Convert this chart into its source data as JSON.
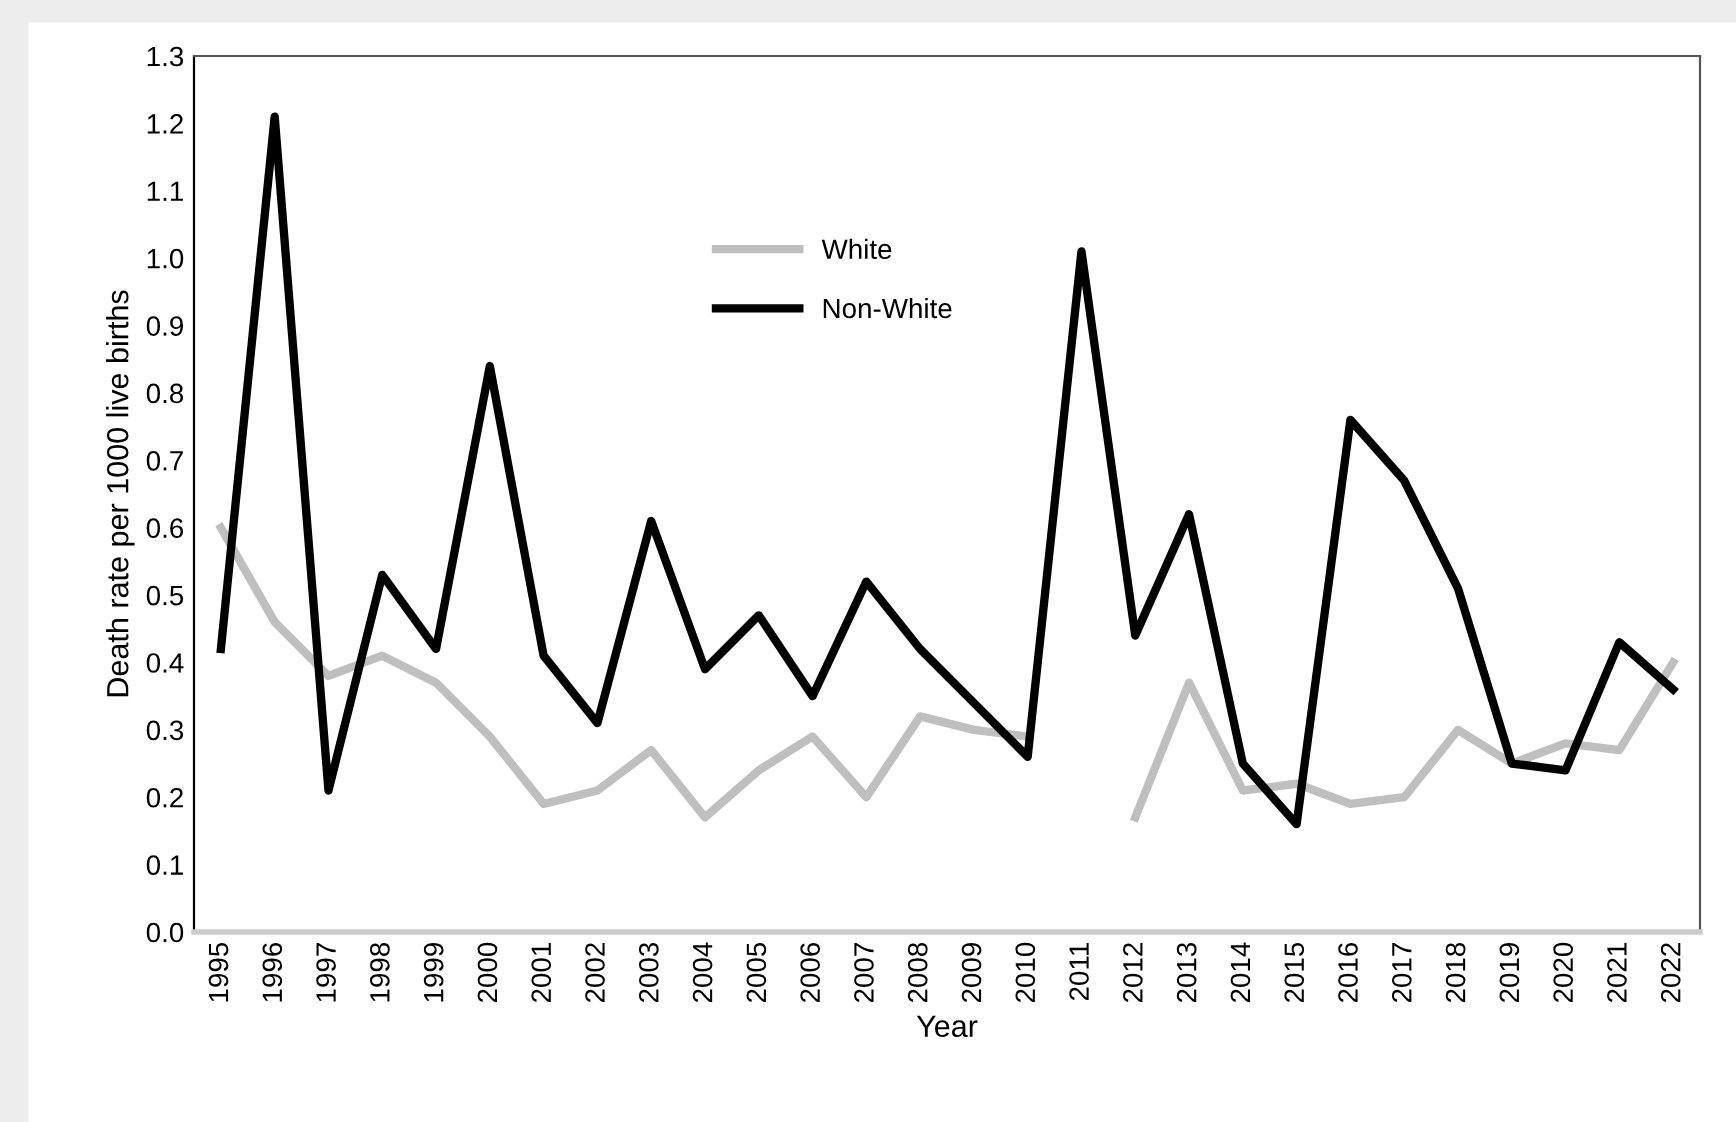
{
  "chart_data": {
    "type": "line",
    "xlabel": "Year",
    "ylabel": "Death rate per 1000 live births",
    "categories": [
      "1995",
      "1996",
      "1997",
      "1998",
      "1999",
      "2000",
      "2001",
      "2002",
      "2003",
      "2004",
      "2005",
      "2006",
      "2007",
      "2008",
      "2009",
      "2010",
      "2011",
      "2012",
      "2013",
      "2014",
      "2015",
      "2016",
      "2017",
      "2018",
      "2019",
      "2020",
      "2021",
      "2022"
    ],
    "series": [
      {
        "name": "White",
        "color": "#bfbfbf",
        "values": [
          0.6,
          0.46,
          0.38,
          0.41,
          0.37,
          0.29,
          0.19,
          0.21,
          0.27,
          0.17,
          0.24,
          0.29,
          0.2,
          0.32,
          0.3,
          0.29,
          null,
          0.17,
          0.37,
          0.21,
          0.22,
          0.19,
          0.2,
          0.3,
          0.25,
          0.28,
          0.27,
          0.4
        ]
      },
      {
        "name": "Non-White",
        "color": "#000000",
        "values": [
          0.42,
          1.21,
          0.21,
          0.53,
          0.42,
          0.84,
          0.41,
          0.31,
          0.61,
          0.39,
          0.47,
          0.35,
          0.52,
          0.42,
          0.34,
          0.26,
          1.01,
          0.44,
          0.62,
          0.25,
          0.16,
          0.76,
          0.67,
          0.51,
          0.25,
          0.24,
          0.43,
          0.36
        ]
      }
    ],
    "ylim": [
      0,
      1.3
    ],
    "yticks": [
      {
        "value": 0,
        "label": "0.0"
      },
      0.1,
      0.2,
      0.3,
      0.4,
      0.5,
      0.6,
      0.7,
      0.8,
      0.9,
      {
        "value": 1,
        "label": "1.0"
      },
      1.1,
      1.2,
      1.3
    ],
    "grid": false,
    "legend": "top",
    "marker": "none",
    "line_style": "solid"
  }
}
